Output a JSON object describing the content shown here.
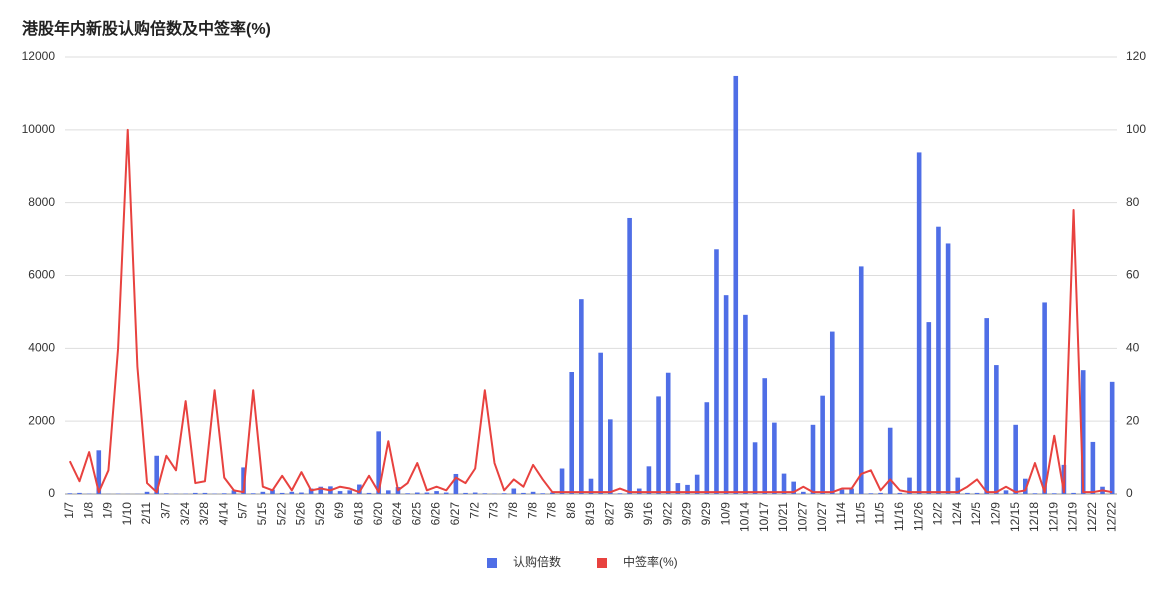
{
  "chart_data": {
    "type": "bar_line",
    "title": "港股年内新股认购倍数及中签率(%)",
    "categories": [
      "1/7",
      null,
      "1/8",
      null,
      "1/9",
      null,
      "1/10",
      null,
      "2/11",
      null,
      "3/7",
      null,
      "3/24",
      null,
      "3/28",
      null,
      "4/14",
      null,
      "5/7",
      null,
      "5/15",
      null,
      "5/22",
      null,
      "5/26",
      null,
      "5/29",
      null,
      "6/9",
      null,
      "6/18",
      null,
      "6/20",
      null,
      "6/24",
      null,
      "6/25",
      null,
      "6/26",
      null,
      "6/27",
      null,
      "7/2",
      null,
      "7/3",
      null,
      "7/8",
      null,
      "7/8",
      null,
      "7/8",
      null,
      "8/8",
      null,
      "8/19",
      null,
      "8/27",
      null,
      "9/8",
      null,
      "9/16",
      null,
      "9/22",
      null,
      "9/29",
      null,
      "9/29",
      null,
      "10/9",
      null,
      "10/14",
      null,
      "10/17",
      null,
      "10/21",
      null,
      "10/27",
      null,
      "10/27",
      null,
      "11/4",
      null,
      "11/5",
      null,
      "11/5",
      null,
      "11/16",
      null,
      "11/26",
      null,
      "12/2",
      null,
      "12/4",
      null,
      "12/5",
      null,
      "12/9",
      null,
      "12/15",
      null,
      "12/18",
      null,
      "12/19",
      null,
      "12/19",
      null,
      "12/22",
      null,
      "12/22"
    ],
    "series": [
      {
        "name": "认购倍数",
        "color": "#4f6ee6",
        "axis": "y",
        "values": [
          20,
          30,
          10,
          1200,
          5,
          10,
          5,
          5,
          60,
          1050,
          20,
          10,
          10,
          30,
          30,
          10,
          20,
          100,
          730,
          20,
          60,
          120,
          30,
          60,
          40,
          150,
          200,
          210,
          80,
          100,
          260,
          30,
          1720,
          100,
          190,
          20,
          40,
          40,
          80,
          40,
          550,
          30,
          40,
          20,
          10,
          20,
          150,
          30,
          60,
          20,
          40,
          700,
          3350,
          5350,
          420,
          3880,
          2050,
          20,
          7580,
          150,
          760,
          2680,
          3330,
          300,
          250,
          530,
          2520,
          6720,
          5460,
          11480,
          4920,
          1420,
          3180,
          1960,
          560,
          340,
          60,
          1900,
          2700,
          4460,
          120,
          150,
          6250,
          20,
          30,
          1820,
          30,
          450,
          9380,
          4720,
          7340,
          6880,
          450,
          30,
          30,
          4830,
          3540,
          100,
          1900,
          420,
          20,
          5260,
          20,
          800,
          30,
          3400,
          1430,
          200,
          3080
        ]
      },
      {
        "name": "中签率(%)",
        "color": "#e8423f",
        "axis": "y2",
        "values": [
          9,
          3.5,
          11.5,
          0.5,
          6.5,
          40,
          100,
          35,
          3,
          0.5,
          10.5,
          6.5,
          25.5,
          3,
          3.5,
          28.5,
          4.5,
          1,
          0.5,
          28.5,
          2,
          1,
          5,
          1,
          6,
          1,
          1.5,
          1,
          2,
          1.5,
          0.5,
          5,
          0.5,
          14.5,
          1,
          3,
          8.5,
          1,
          2,
          1,
          4.5,
          3,
          7,
          28.5,
          8.5,
          1,
          4,
          2,
          8,
          4,
          0.5,
          0.5,
          0.5,
          0.5,
          0.5,
          0.5,
          0.5,
          1.5,
          0.5,
          0.5,
          0.5,
          0.5,
          0.5,
          0.5,
          0.5,
          0.5,
          0.5,
          0.5,
          0.5,
          0.5,
          0.5,
          0.5,
          0.5,
          0.5,
          0.5,
          0.5,
          2,
          0.5,
          0.5,
          0.5,
          1.5,
          1.5,
          5.5,
          6.5,
          1,
          4,
          1,
          0.5,
          0.5,
          0.5,
          0.5,
          0.5,
          0.5,
          2,
          4,
          0.5,
          0.5,
          2,
          0.5,
          1,
          8.5,
          0.5,
          16,
          0.5,
          78,
          0.5,
          0.5,
          1,
          0.5
        ]
      }
    ],
    "ylim": [
      0,
      12000
    ],
    "yticks": [
      0,
      2000,
      4000,
      6000,
      8000,
      10000,
      12000
    ],
    "y2lim": [
      0,
      120
    ],
    "y2ticks": [
      0,
      20,
      40,
      60,
      80,
      100,
      120
    ],
    "grid": true,
    "legend": "bottom"
  }
}
